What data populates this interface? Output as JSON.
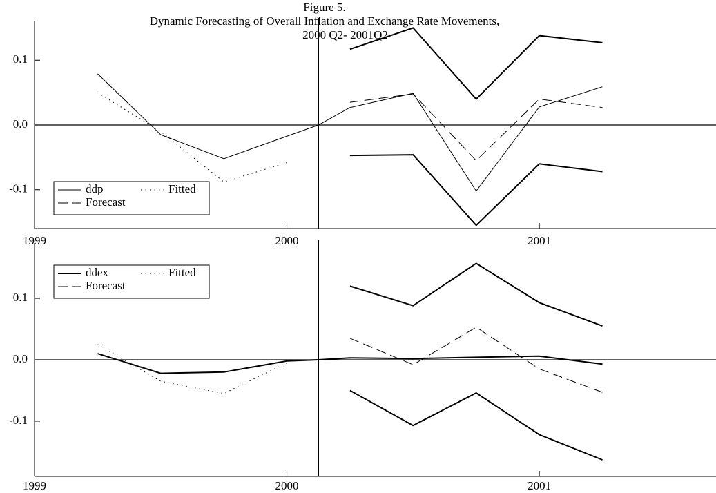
{
  "title": [
    "Figure 5.",
    "Dynamic Forecasting of Overall Inflation and Exchange Rate Movements,",
    "2000 Q2- 2001Q2"
  ],
  "chart_data": [
    {
      "type": "line",
      "xlim": [
        1999,
        2001.7
      ],
      "xticks": [
        1999,
        2000,
        2001
      ],
      "ylim": [
        -0.16,
        0.16
      ],
      "yticks": [
        -0.1,
        {
          "value": 0,
          "label": "0.0"
        },
        0.1
      ],
      "hline": 0,
      "vline": 2000.125,
      "legend": "lower left",
      "series": [
        {
          "name": "ddp",
          "color": "#000000",
          "linestyle": "solid",
          "width": 1,
          "x": [
            1999.25,
            1999.5,
            1999.75,
            2000.125,
            2000.25,
            2000.5,
            2000.75,
            2001,
            2001.25
          ],
          "values": [
            0.079,
            -0.015,
            -0.052,
            0.0,
            0.027,
            0.049,
            -0.102,
            0.028,
            0.059
          ]
        },
        {
          "name": "Fitted",
          "color": "#000000",
          "linestyle": "dotted",
          "width": 1,
          "x": [
            1999.25,
            1999.5,
            1999.75,
            2000.0
          ],
          "values": [
            0.05,
            -0.01,
            -0.088,
            -0.058
          ]
        },
        {
          "name": "Forecast",
          "color": "#000000",
          "linestyle": "dashed",
          "width": 1,
          "x": [
            2000.25,
            2000.5,
            2000.75,
            2001,
            2001.25
          ],
          "values": [
            0.035,
            0.048,
            -0.055,
            0.04,
            0.027
          ]
        },
        {
          "color": "#000000",
          "linestyle": "solid",
          "width": 2,
          "x": [
            2000.25,
            2000.5,
            2000.75,
            2001,
            2001.25
          ],
          "values": [
            0.117,
            0.15,
            0.04,
            0.138,
            0.127
          ]
        },
        {
          "color": "#000000",
          "linestyle": "solid",
          "width": 2,
          "x": [
            2000.25,
            2000.5,
            2000.75,
            2001,
            2001.25
          ],
          "values": [
            -0.047,
            -0.046,
            -0.155,
            -0.06,
            -0.072
          ]
        }
      ]
    },
    {
      "type": "line",
      "xlim": [
        1999,
        2001.7
      ],
      "xticks": [
        1999,
        2000,
        2001
      ],
      "ylim": [
        -0.19,
        0.19
      ],
      "yticks": [
        -0.1,
        {
          "value": 0,
          "label": "0.0"
        },
        0.1
      ],
      "hline": 0,
      "vline": 2000.125,
      "legend": "upper left",
      "series": [
        {
          "name": "ddex",
          "color": "#000000",
          "linestyle": "solid",
          "width": 2,
          "x": [
            1999.25,
            1999.5,
            1999.75,
            2000.0,
            2000.125,
            2000.25,
            2000.5,
            2000.75,
            2001,
            2001.25
          ],
          "values": [
            0.01,
            -0.022,
            -0.02,
            -0.002,
            0.0,
            0.003,
            0.002,
            0.004,
            0.006,
            -0.007
          ]
        },
        {
          "name": "Fitted",
          "color": "#000000",
          "linestyle": "dotted",
          "width": 1,
          "x": [
            1999.25,
            1999.5,
            1999.75,
            2000.0
          ],
          "values": [
            0.025,
            -0.035,
            -0.055,
            -0.005
          ]
        },
        {
          "name": "Forecast",
          "color": "#000000",
          "linestyle": "dashed",
          "width": 1,
          "x": [
            2000.25,
            2000.5,
            2000.75,
            2001,
            2001.25
          ],
          "values": [
            0.035,
            -0.008,
            0.053,
            -0.015,
            -0.053
          ]
        },
        {
          "color": "#000000",
          "linestyle": "solid",
          "width": 2,
          "x": [
            2000.25,
            2000.5,
            2000.75,
            2001,
            2001.25
          ],
          "values": [
            0.12,
            0.088,
            0.157,
            0.093,
            0.055
          ]
        },
        {
          "color": "#000000",
          "linestyle": "solid",
          "width": 2,
          "x": [
            2000.25,
            2000.5,
            2000.75,
            2001,
            2001.25
          ],
          "values": [
            -0.05,
            -0.107,
            -0.054,
            -0.122,
            -0.163
          ]
        }
      ]
    }
  ]
}
